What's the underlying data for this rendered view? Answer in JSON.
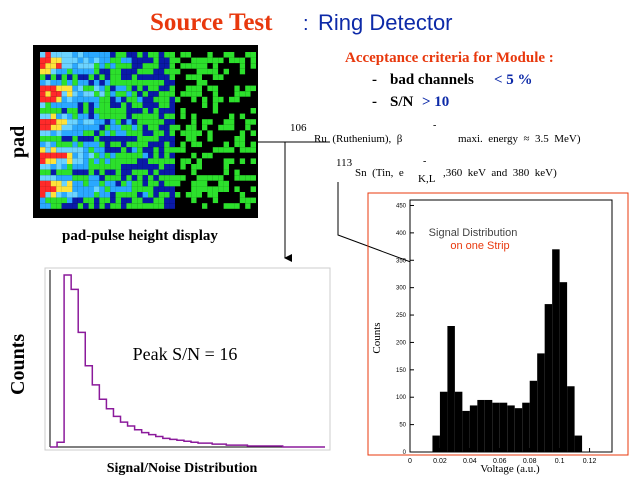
{
  "title": {
    "main": "Source Test",
    "separator": ":",
    "sub": "Ring Detector"
  },
  "pad_display": {
    "axis_label": "pad",
    "caption": "pad-pulse height display"
  },
  "criteria": {
    "heading": "Acceptance criteria for Module :",
    "items": [
      {
        "dash": "-",
        "label": "bad channels",
        "limit": "< 5 %"
      },
      {
        "dash": "-",
        "label": "S/N",
        "limit": "> 10"
      }
    ]
  },
  "sources": [
    {
      "mass": "106",
      "text": "Ru  (Ruthenium),  β",
      "sup": "-",
      "rest": "maxi.  energy  ≈  3.5  MeV)"
    },
    {
      "mass": "113",
      "text": "Sn  (Tin,  e",
      "sup": "-",
      "sub": "K,L",
      "rest": ",360  keV  and  380  keV)"
    }
  ],
  "chart_data": [
    {
      "type": "line",
      "ylabel": "Counts",
      "xlabel": "Signal/Noise Distribution",
      "annotation": "Peak S/N = 16",
      "color": "#8b1a9b",
      "values": [
        0,
        5,
        180,
        165,
        120,
        85,
        65,
        50,
        40,
        32,
        26,
        22,
        18,
        15,
        13,
        11,
        9,
        8,
        7,
        6,
        5,
        4,
        4,
        3,
        3,
        2,
        2,
        2,
        1,
        1,
        1,
        1,
        1,
        0,
        0,
        0,
        0,
        0,
        0,
        0
      ]
    },
    {
      "type": "histogram",
      "ylabel": "Counts",
      "xlabel": "Voltage (a.u.)",
      "annotations": [
        "Signal Distribution",
        "on one Strip"
      ],
      "color": "#000000",
      "bins": [
        0.015,
        0.02,
        0.025,
        0.03,
        0.035,
        0.04,
        0.045,
        0.05,
        0.055,
        0.06,
        0.065,
        0.07,
        0.075,
        0.08,
        0.085,
        0.09,
        0.095,
        0.1,
        0.105,
        0.11,
        0.115
      ],
      "values": [
        30,
        110,
        230,
        110,
        75,
        85,
        95,
        95,
        90,
        90,
        85,
        80,
        90,
        130,
        180,
        270,
        370,
        310,
        120,
        30
      ],
      "xlim": [
        0,
        0.135
      ],
      "ylim": [
        0,
        460
      ],
      "xticks": [
        0,
        0.02,
        0.04,
        0.06,
        0.08,
        0.1,
        0.12
      ],
      "yticks": [
        0,
        50,
        100,
        150,
        200,
        250,
        300,
        350,
        400,
        450
      ]
    }
  ]
}
